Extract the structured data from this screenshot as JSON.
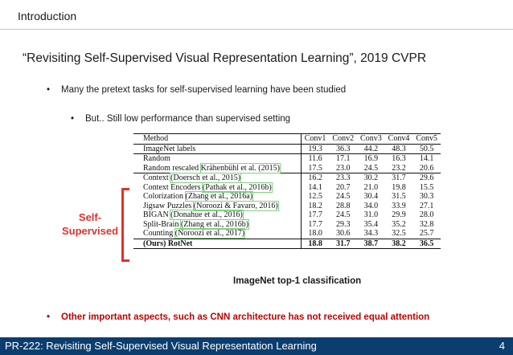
{
  "header": {
    "section": "Introduction"
  },
  "title": "“Revisiting Self-Supervised Visual Representation Learning”, 2019 CVPR",
  "bullets": {
    "b1": "Many the pretext tasks for self-supervised learning have been studied",
    "b2": "But.. Still low performance than supervised setting",
    "b3": "Other important aspects, such as CNN architecture has not received equal attention"
  },
  "bullet_glyph": "•",
  "table": {
    "columns": [
      "Method",
      "Conv1",
      "Conv2",
      "Conv3",
      "Conv4",
      "Conv5"
    ],
    "groups": [
      [
        {
          "method": "ImageNet labels",
          "cite": "",
          "values": [
            "19.3",
            "36.3",
            "44.2",
            "48.3",
            "50.5"
          ]
        }
      ],
      [
        {
          "method": "Random",
          "cite": "",
          "values": [
            "11.6",
            "17.1",
            "16.9",
            "16.3",
            "14.1"
          ]
        },
        {
          "method": "Random rescaled ",
          "cite": "Krähenbühl et al. (2015)",
          "values": [
            "17.5",
            "23.0",
            "24.5",
            "23.2",
            "20.6"
          ]
        }
      ],
      [
        {
          "method": "Context ",
          "cite": "(Doersch et al., 2015)",
          "values": [
            "16.2",
            "23.3",
            "30.2",
            "31.7",
            "29.6"
          ]
        },
        {
          "method": "Context Encoders ",
          "cite": "(Pathak et al., 2016b)",
          "values": [
            "14.1",
            "20.7",
            "21.0",
            "19.8",
            "15.5"
          ]
        },
        {
          "method": "Colorization ",
          "cite": "(Zhang et al., 2016a)",
          "values": [
            "12.5",
            "24.5",
            "30.4",
            "31.5",
            "30.3"
          ]
        },
        {
          "method": "Jigsaw Puzzles ",
          "cite": "(Noroozi & Favaro, 2016)",
          "values": [
            "18.2",
            "28.8",
            "34.0",
            "33.9",
            "27.1"
          ]
        },
        {
          "method": "BIGAN ",
          "cite": "(Donahue et al., 2016)",
          "values": [
            "17.7",
            "24.5",
            "31.0",
            "29.9",
            "28.0"
          ]
        },
        {
          "method": "Split-Brain ",
          "cite": "(Zhang et al., 2016b)",
          "values": [
            "17.7",
            "29.3",
            "35.4",
            "35.2",
            "32.8"
          ]
        },
        {
          "method": "Counting ",
          "cite": "(Noroozi et al., 2017)",
          "values": [
            "18.0",
            "30.6",
            "34.3",
            "32.5",
            "25.7"
          ]
        }
      ],
      [
        {
          "method": "(Ours) RotNet",
          "cite": "",
          "bold": true,
          "values": [
            "18.8",
            "31.7",
            "38.7",
            "38.2",
            "36.5"
          ]
        }
      ]
    ]
  },
  "bracket_label": "Self-\nSupervised",
  "caption": "ImageNet top-1 classification",
  "footer": {
    "text": "PR-222: Revisiting Self-Supervised Visual Representation Learning",
    "page": "4"
  },
  "colors": {
    "accent_red": "#e0322c",
    "bullet_red": "#c00000",
    "footer_bg": "#0b3d6e",
    "cite_box": "#7fd37f"
  }
}
